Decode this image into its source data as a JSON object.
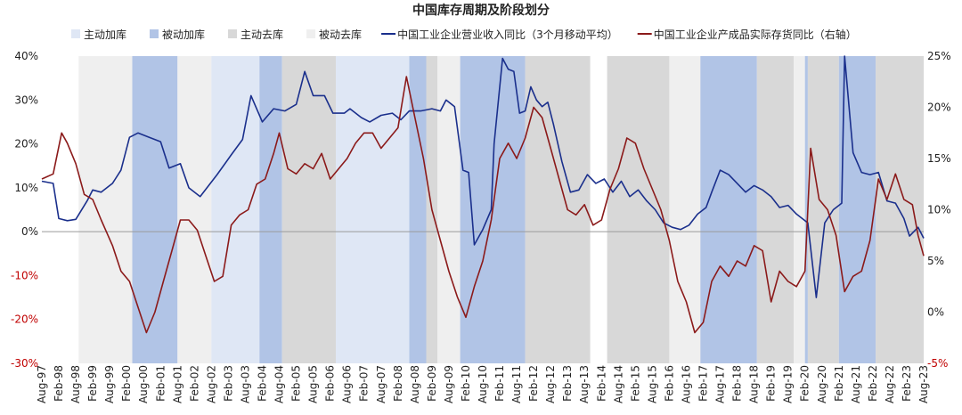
{
  "chart_data": {
    "type": "line",
    "title": "中国库存周期及阶段划分",
    "legend": [
      {
        "label": "主动加库",
        "kind": "band",
        "color": "#dfe7f5"
      },
      {
        "label": "被动加库",
        "kind": "band",
        "color": "#b1c4e6"
      },
      {
        "label": "主动去库",
        "kind": "band",
        "color": "#d8d8d8"
      },
      {
        "label": "被动去库",
        "kind": "band",
        "color": "#efefef"
      },
      {
        "label": "中国工业企业营业收入同比（3个月移动平均）",
        "kind": "line",
        "color": "#1a2f8c"
      },
      {
        "label": "中国工业企业产成品实际存货同比（右轴）",
        "kind": "line",
        "color": "#8b1a1a"
      }
    ],
    "legend_position": "top",
    "y_left": {
      "min": -30,
      "max": 40,
      "step": 10,
      "ticks": [
        "40%",
        "30%",
        "20%",
        "10%",
        "0%",
        "-10%",
        "-20%",
        "-30%"
      ]
    },
    "y_right": {
      "min": -5,
      "max": 25,
      "step": 5,
      "ticks": [
        "25%",
        "20%",
        "15%",
        "10%",
        "5%",
        "0%",
        "-5%"
      ]
    },
    "x_range": [
      "1997-08",
      "2023-08"
    ],
    "x_ticks": [
      "Aug-97",
      "Feb-98",
      "Aug-98",
      "Feb-99",
      "Aug-99",
      "Feb-00",
      "Aug-00",
      "Feb-01",
      "Aug-01",
      "Feb-02",
      "Aug-02",
      "Feb-03",
      "Aug-03",
      "Feb-04",
      "Aug-04",
      "Feb-05",
      "Aug-05",
      "Feb-06",
      "Aug-06",
      "Feb-07",
      "Aug-07",
      "Feb-08",
      "Aug-08",
      "Feb-09",
      "Aug-09",
      "Feb-10",
      "Aug-10",
      "Feb-11",
      "Aug-11",
      "Feb-12",
      "Aug-12",
      "Feb-13",
      "Aug-13",
      "Feb-14",
      "Aug-14",
      "Feb-15",
      "Aug-15",
      "Feb-16",
      "Aug-16",
      "Feb-17",
      "Aug-17",
      "Feb-18",
      "Aug-18",
      "Feb-19",
      "Aug-19",
      "Feb-20",
      "Aug-20",
      "Feb-21",
      "Aug-21",
      "Feb-22",
      "Aug-22",
      "Feb-23",
      "Aug-23"
    ],
    "bands": [
      {
        "start": "1998-09",
        "end": "2000-04",
        "phase": "被动去库"
      },
      {
        "start": "2000-04",
        "end": "2001-08",
        "phase": "被动加库"
      },
      {
        "start": "2001-08",
        "end": "2002-08",
        "phase": "被动去库"
      },
      {
        "start": "2002-08",
        "end": "2004-01",
        "phase": "主动加库"
      },
      {
        "start": "2004-01",
        "end": "2004-09",
        "phase": "被动加库"
      },
      {
        "start": "2004-09",
        "end": "2006-04",
        "phase": "主动去库"
      },
      {
        "start": "2006-04",
        "end": "2008-06",
        "phase": "主动加库"
      },
      {
        "start": "2008-06",
        "end": "2008-12",
        "phase": "被动加库"
      },
      {
        "start": "2008-12",
        "end": "2009-04",
        "phase": "主动去库"
      },
      {
        "start": "2009-04",
        "end": "2009-12",
        "phase": "被动去库"
      },
      {
        "start": "2009-12",
        "end": "2011-11",
        "phase": "被动加库"
      },
      {
        "start": "2011-11",
        "end": "2013-10",
        "phase": "主动去库"
      },
      {
        "start": "2014-04",
        "end": "2016-02",
        "phase": "主动去库"
      },
      {
        "start": "2016-02",
        "end": "2017-01",
        "phase": "被动去库"
      },
      {
        "start": "2017-01",
        "end": "2018-09",
        "phase": "被动加库"
      },
      {
        "start": "2018-09",
        "end": "2019-10",
        "phase": "主动去库"
      },
      {
        "start": "2019-10",
        "end": "2020-02",
        "phase": "被动去库"
      },
      {
        "start": "2020-02",
        "end": "2020-03",
        "phase": "被动加库"
      },
      {
        "start": "2020-03",
        "end": "2021-02",
        "phase": "主动去库"
      },
      {
        "start": "2021-02",
        "end": "2022-03",
        "phase": "被动加库"
      },
      {
        "start": "2022-03",
        "end": "2023-08",
        "phase": "主动去库"
      }
    ],
    "series": [
      {
        "name": "中国工业企业营业收入同比（3个月移动平均）",
        "axis": "left",
        "color": "#1a2f8c",
        "points": [
          [
            "1997-08",
            11.5
          ],
          [
            "1997-12",
            11
          ],
          [
            "1998-02",
            3
          ],
          [
            "1998-05",
            2.5
          ],
          [
            "1998-08",
            2.8
          ],
          [
            "1998-12",
            7
          ],
          [
            "1999-02",
            9.5
          ],
          [
            "1999-05",
            9
          ],
          [
            "1999-09",
            11
          ],
          [
            "1999-12",
            14
          ],
          [
            "2000-03",
            21.5
          ],
          [
            "2000-06",
            22.5
          ],
          [
            "2000-10",
            21.5
          ],
          [
            "2001-02",
            20.5
          ],
          [
            "2001-05",
            14.5
          ],
          [
            "2001-09",
            15.5
          ],
          [
            "2001-12",
            10
          ],
          [
            "2002-04",
            8
          ],
          [
            "2002-10",
            13
          ],
          [
            "2003-03",
            17.5
          ],
          [
            "2003-07",
            21
          ],
          [
            "2003-10",
            31
          ],
          [
            "2004-02",
            25
          ],
          [
            "2004-06",
            28
          ],
          [
            "2004-10",
            27.5
          ],
          [
            "2005-02",
            29
          ],
          [
            "2005-05",
            36.5
          ],
          [
            "2005-08",
            31
          ],
          [
            "2005-12",
            31
          ],
          [
            "2006-03",
            27
          ],
          [
            "2006-07",
            27
          ],
          [
            "2006-09",
            28
          ],
          [
            "2007-01",
            26
          ],
          [
            "2007-04",
            25
          ],
          [
            "2007-08",
            26.5
          ],
          [
            "2007-12",
            27
          ],
          [
            "2008-03",
            25.5
          ],
          [
            "2008-06",
            27.5
          ],
          [
            "2008-10",
            27.5
          ],
          [
            "2009-02",
            28
          ],
          [
            "2009-05",
            27.5
          ],
          [
            "2009-07",
            30
          ],
          [
            "2009-10",
            28.5
          ],
          [
            "2010-01",
            14
          ],
          [
            "2010-03",
            13.5
          ],
          [
            "2010-05",
            -3
          ],
          [
            "2010-08",
            0.5
          ],
          [
            "2010-11",
            5
          ],
          [
            "2010-12",
            20
          ],
          [
            "2011-03",
            39.5
          ],
          [
            "2011-05",
            37
          ],
          [
            "2011-07",
            36.5
          ],
          [
            "2011-09",
            27
          ],
          [
            "2011-11",
            27.5
          ],
          [
            "2012-01",
            33
          ],
          [
            "2012-03",
            30
          ],
          [
            "2012-05",
            28.5
          ],
          [
            "2012-07",
            29.5
          ],
          [
            "2012-09",
            24.5
          ],
          [
            "2012-12",
            16
          ],
          [
            "2013-03",
            9
          ],
          [
            "2013-06",
            9.5
          ],
          [
            "2013-09",
            13
          ],
          [
            "2013-12",
            11
          ],
          [
            "2014-03",
            12
          ],
          [
            "2014-06",
            9
          ],
          [
            "2014-09",
            11.5
          ],
          [
            "2014-12",
            8
          ],
          [
            "2015-03",
            9.5
          ],
          [
            "2015-06",
            7
          ],
          [
            "2015-09",
            5
          ],
          [
            "2015-12",
            2
          ],
          [
            "2016-03",
            1
          ],
          [
            "2016-06",
            0.5
          ],
          [
            "2016-09",
            1.5
          ],
          [
            "2016-12",
            4
          ],
          [
            "2017-03",
            5.5
          ],
          [
            "2017-05",
            9
          ],
          [
            "2017-08",
            14
          ],
          [
            "2017-11",
            13
          ],
          [
            "2018-02",
            11
          ],
          [
            "2018-05",
            9
          ],
          [
            "2018-08",
            10.5
          ],
          [
            "2018-11",
            9.5
          ],
          [
            "2019-02",
            8
          ],
          [
            "2019-05",
            5.5
          ],
          [
            "2019-08",
            6
          ],
          [
            "2019-11",
            4
          ],
          [
            "2020-01",
            3
          ],
          [
            "2020-03",
            2
          ],
          [
            "2020-06",
            -15
          ],
          [
            "2020-09",
            2
          ],
          [
            "2020-12",
            5
          ],
          [
            "2021-03",
            6.5
          ],
          [
            "2021-04",
            40
          ],
          [
            "2021-07",
            18
          ],
          [
            "2021-10",
            13.5
          ],
          [
            "2022-01",
            13
          ],
          [
            "2022-04",
            13.5
          ],
          [
            "2022-07",
            7
          ],
          [
            "2022-10",
            6.5
          ],
          [
            "2023-01",
            3
          ],
          [
            "2023-03",
            -1
          ],
          [
            "2023-06",
            1
          ],
          [
            "2023-08",
            -1.5
          ]
        ]
      },
      {
        "name": "中国工业企业产成品实际存货同比（右轴）",
        "axis": "right",
        "color": "#8b1a1a",
        "points": [
          [
            "1997-08",
            13
          ],
          [
            "1997-12",
            13.5
          ],
          [
            "1998-03",
            17.5
          ],
          [
            "1998-05",
            16.5
          ],
          [
            "1998-08",
            14.5
          ],
          [
            "1998-11",
            11.5
          ],
          [
            "1999-02",
            11
          ],
          [
            "1999-05",
            9
          ],
          [
            "1999-09",
            6.5
          ],
          [
            "1999-12",
            4
          ],
          [
            "2000-03",
            3
          ],
          [
            "2000-06",
            0.5
          ],
          [
            "2000-09",
            -2
          ],
          [
            "2000-12",
            0
          ],
          [
            "2001-03",
            3
          ],
          [
            "2001-06",
            6
          ],
          [
            "2001-09",
            9
          ],
          [
            "2001-12",
            9
          ],
          [
            "2002-03",
            8
          ],
          [
            "2002-06",
            5.5
          ],
          [
            "2002-09",
            3
          ],
          [
            "2002-12",
            3.5
          ],
          [
            "2003-03",
            8.5
          ],
          [
            "2003-06",
            9.5
          ],
          [
            "2003-09",
            10
          ],
          [
            "2003-12",
            12.5
          ],
          [
            "2004-03",
            13
          ],
          [
            "2004-06",
            15.5
          ],
          [
            "2004-08",
            17.5
          ],
          [
            "2004-11",
            14
          ],
          [
            "2005-02",
            13.5
          ],
          [
            "2005-05",
            14.5
          ],
          [
            "2005-08",
            14
          ],
          [
            "2005-11",
            15.5
          ],
          [
            "2006-02",
            13
          ],
          [
            "2006-05",
            14
          ],
          [
            "2006-08",
            15
          ],
          [
            "2006-11",
            16.5
          ],
          [
            "2007-02",
            17.5
          ],
          [
            "2007-05",
            17.5
          ],
          [
            "2007-08",
            16
          ],
          [
            "2007-11",
            17
          ],
          [
            "2008-02",
            18
          ],
          [
            "2008-05",
            23
          ],
          [
            "2008-08",
            19
          ],
          [
            "2008-11",
            15
          ],
          [
            "2009-02",
            10
          ],
          [
            "2009-05",
            7
          ],
          [
            "2009-08",
            4
          ],
          [
            "2009-11",
            1.5
          ],
          [
            "2010-02",
            -0.5
          ],
          [
            "2010-05",
            2.5
          ],
          [
            "2010-08",
            5
          ],
          [
            "2010-11",
            9
          ],
          [
            "2011-02",
            15
          ],
          [
            "2011-05",
            16.5
          ],
          [
            "2011-08",
            15
          ],
          [
            "2011-11",
            17
          ],
          [
            "2012-02",
            20
          ],
          [
            "2012-05",
            19
          ],
          [
            "2012-08",
            16
          ],
          [
            "2012-11",
            13
          ],
          [
            "2013-02",
            10
          ],
          [
            "2013-05",
            9.5
          ],
          [
            "2013-08",
            10.5
          ],
          [
            "2013-11",
            8.5
          ],
          [
            "2014-02",
            9
          ],
          [
            "2014-05",
            12
          ],
          [
            "2014-08",
            14
          ],
          [
            "2014-11",
            17
          ],
          [
            "2015-02",
            16.5
          ],
          [
            "2015-05",
            14
          ],
          [
            "2015-08",
            12
          ],
          [
            "2015-11",
            10
          ],
          [
            "2016-02",
            7
          ],
          [
            "2016-05",
            3
          ],
          [
            "2016-08",
            1
          ],
          [
            "2016-11",
            -2
          ],
          [
            "2017-02",
            -1
          ],
          [
            "2017-05",
            3
          ],
          [
            "2017-08",
            4.5
          ],
          [
            "2017-11",
            3.5
          ],
          [
            "2018-02",
            5
          ],
          [
            "2018-05",
            4.5
          ],
          [
            "2018-08",
            6.5
          ],
          [
            "2018-11",
            6
          ],
          [
            "2019-02",
            1
          ],
          [
            "2019-05",
            4
          ],
          [
            "2019-08",
            3
          ],
          [
            "2019-11",
            2.5
          ],
          [
            "2020-02",
            4
          ],
          [
            "2020-04",
            16
          ],
          [
            "2020-07",
            11
          ],
          [
            "2020-10",
            10
          ],
          [
            "2021-01",
            7.5
          ],
          [
            "2021-04",
            2
          ],
          [
            "2021-07",
            3.5
          ],
          [
            "2021-10",
            4
          ],
          [
            "2022-01",
            7
          ],
          [
            "2022-04",
            13
          ],
          [
            "2022-07",
            11
          ],
          [
            "2022-10",
            13.5
          ],
          [
            "2023-01",
            11
          ],
          [
            "2023-04",
            10.5
          ],
          [
            "2023-06",
            7.5
          ],
          [
            "2023-08",
            5.5
          ]
        ]
      }
    ]
  }
}
